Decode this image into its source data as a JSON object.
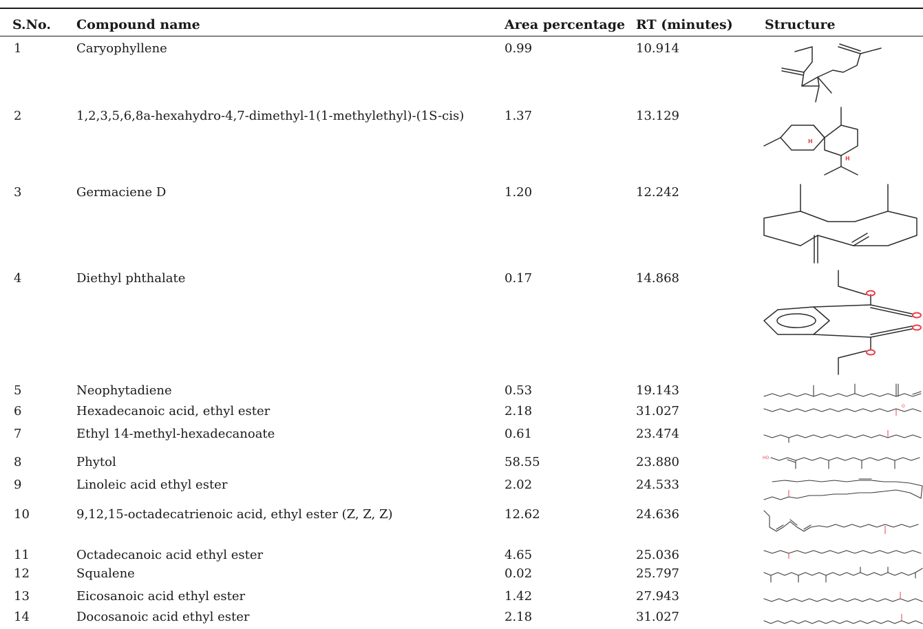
{
  "table": {
    "headers": {
      "sno": "S.No.",
      "compound": "Compound name",
      "area": "Area percentage",
      "rt": "RT (minutes)",
      "structure": "Structure"
    },
    "rows": [
      {
        "sno": "1",
        "name": "Caryophyllene",
        "area": "0.99",
        "rt": "10.914"
      },
      {
        "sno": "2",
        "name": "1,2,3,5,6,8a-hexahydro-4,7-dimethyl-1(1-methylethyl)-(1S-cis)",
        "area": "1.37",
        "rt": "13.129"
      },
      {
        "sno": "3",
        "name": "Germaciene D",
        "area": "1.20",
        "rt": "12.242"
      },
      {
        "sno": "4",
        "name": "Diethyl phthalate",
        "area": "0.17",
        "rt": "14.868"
      },
      {
        "sno": "5",
        "name": "Neophytadiene",
        "area": "0.53",
        "rt": "19.143"
      },
      {
        "sno": "6",
        "name": "Hexadecanoic acid, ethyl ester",
        "area": "2.18",
        "rt": "31.027"
      },
      {
        "sno": "7",
        "name": "Ethyl 14-methyl-hexadecanoate",
        "area": "0.61",
        "rt": "23.474"
      },
      {
        "sno": "8",
        "name": "Phytol",
        "area": "58.55",
        "rt": "23.880"
      },
      {
        "sno": "9",
        "name": "Linoleic acid ethyl ester",
        "area": "2.02",
        "rt": "24.533"
      },
      {
        "sno": "10",
        "name": "9,12,15-octadecatrienoic acid, ethyl ester (Z, Z, Z)",
        "area": "12.62",
        "rt": "24.636"
      },
      {
        "sno": "11",
        "name": "Octadecanoic acid ethyl ester",
        "area": "4.65",
        "rt": "25.036"
      },
      {
        "sno": "12",
        "name": "Squalene",
        "area": "0.02",
        "rt": "25.797"
      },
      {
        "sno": "13",
        "name": "Eicosanoic acid ethyl ester",
        "area": "1.42",
        "rt": "27.943"
      },
      {
        "sno": "14",
        "name": "Docosanoic acid ethyl ester",
        "area": "2.18",
        "rt": "31.027"
      }
    ]
  }
}
